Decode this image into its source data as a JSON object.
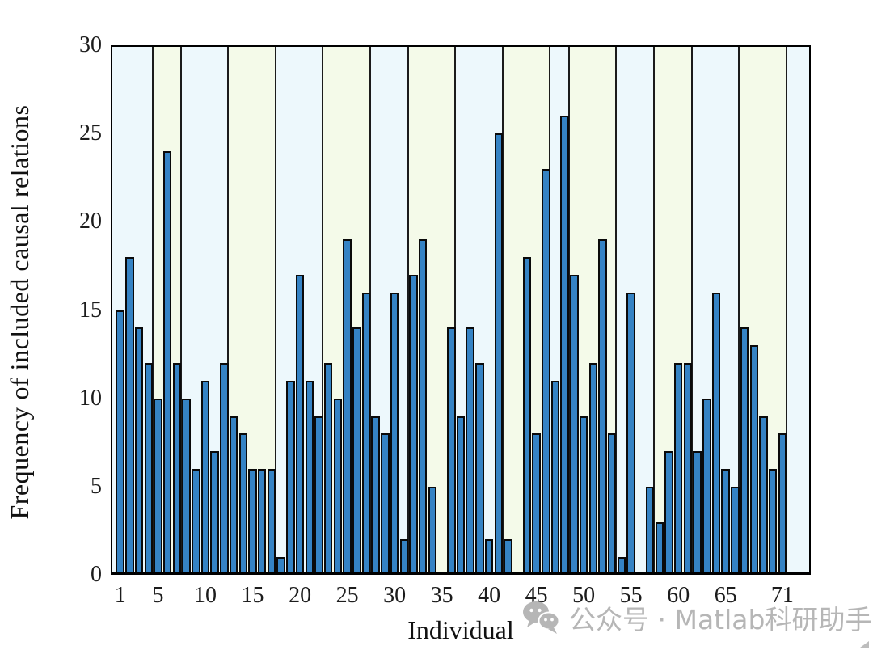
{
  "figure": {
    "watermark": {
      "text": "公众号 · Matlab科研助手",
      "color": "#b6b6b6",
      "icon": "wechat-bubbles-icon"
    }
  },
  "chart_data": {
    "type": "bar",
    "title": "",
    "xlabel": "Individual",
    "ylabel": "Frequency of included causal relations",
    "x_unit": "individual index 1..71",
    "values": [
      15,
      18,
      14,
      12,
      10,
      24,
      12,
      10,
      6,
      11,
      7,
      12,
      9,
      8,
      6,
      6,
      6,
      1,
      11,
      17,
      11,
      9,
      12,
      10,
      19,
      14,
      16,
      9,
      8,
      16,
      2,
      17,
      19,
      5,
      0,
      14,
      9,
      14,
      12,
      2,
      25,
      2,
      0,
      18,
      8,
      23,
      11,
      26,
      17,
      9,
      12,
      19,
      8,
      1,
      16,
      0,
      5,
      3,
      7,
      12,
      12,
      7,
      10,
      16,
      6,
      5,
      14,
      13,
      9,
      6,
      8
    ],
    "ylim": [
      0,
      30
    ],
    "xlim": [
      0,
      74
    ],
    "yticks": [
      0,
      5,
      10,
      15,
      20,
      25,
      30
    ],
    "xticks": [
      1,
      5,
      10,
      15,
      20,
      25,
      30,
      35,
      40,
      45,
      50,
      55,
      60,
      65,
      71
    ],
    "grid": false,
    "legend": null,
    "bar_color": "#3583c4",
    "bar_edge_color": "#0a0a0a",
    "axis_color": "#000000",
    "background_bands": {
      "boundaries": [
        0,
        4.5,
        7.5,
        12.5,
        17.5,
        22.5,
        27.5,
        31.5,
        36.5,
        41.5,
        46.5,
        48.5,
        53.5,
        57.5,
        61.5,
        66.5,
        71.5,
        74
      ],
      "colors": [
        "#edf8fc",
        "#f4fae9"
      ],
      "divider_color": "#1b1b1b"
    }
  }
}
